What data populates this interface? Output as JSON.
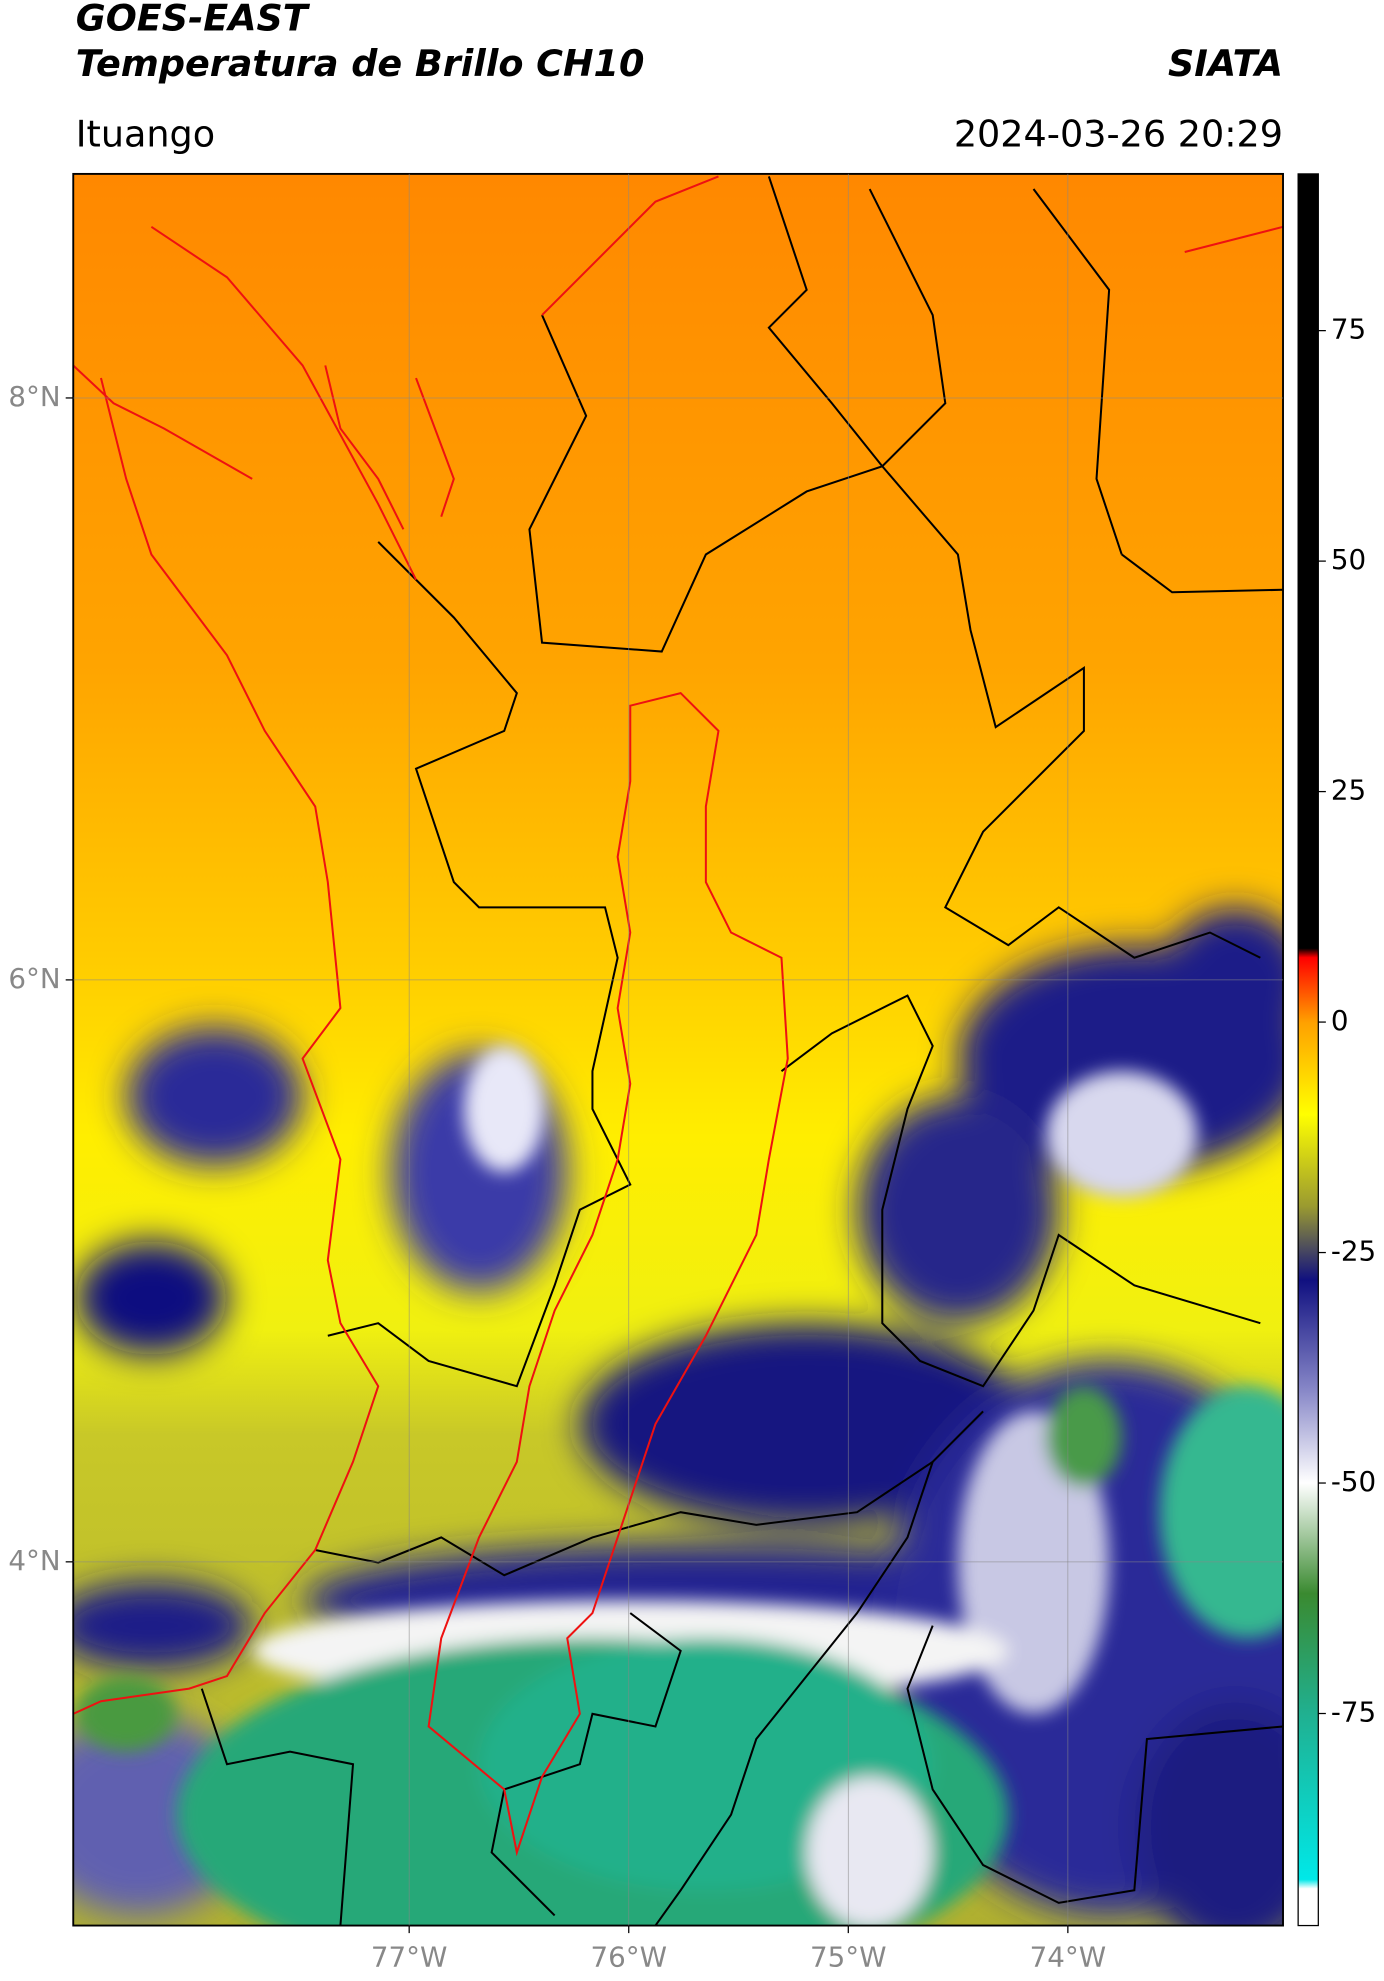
{
  "chart_data": {
    "type": "map",
    "title": "GOES-EAST",
    "subtitle": "Temperatura de Brillo CH10",
    "source": "SIATA",
    "location": "Ituango",
    "timestamp": "2024-03-26 20:29",
    "xlim": [
      -78.53,
      -73.02
    ],
    "ylim": [
      2.75,
      8.77
    ],
    "xticks": [
      {
        "value": -77,
        "label": "77°W"
      },
      {
        "value": -76,
        "label": "76°W"
      },
      {
        "value": -75,
        "label": "75°W"
      },
      {
        "value": -74,
        "label": "74°W"
      }
    ],
    "yticks": [
      {
        "value": 4,
        "label": "4°N"
      },
      {
        "value": 6,
        "label": "6°N"
      },
      {
        "value": 8,
        "label": "8°N"
      }
    ],
    "grid": true,
    "colorbar": {
      "lim": [
        -98,
        92
      ],
      "ticks": [
        -75,
        -50,
        -25,
        0,
        25,
        50,
        75
      ],
      "stops": [
        {
          "value": -98,
          "color": "#ffffff"
        },
        {
          "value": -94,
          "color": "#ffffff"
        },
        {
          "value": -93,
          "color": "#00e8e8"
        },
        {
          "value": -75,
          "color": "#20b090"
        },
        {
          "value": -62,
          "color": "#3a8a30"
        },
        {
          "value": -50,
          "color": "#ffffff"
        },
        {
          "value": -40,
          "color": "#8888c8"
        },
        {
          "value": -28,
          "color": "#101080"
        },
        {
          "value": -20,
          "color": "#9a9a30"
        },
        {
          "value": -10,
          "color": "#ffff00"
        },
        {
          "value": 0,
          "color": "#ffa000"
        },
        {
          "value": 7,
          "color": "#ff0000"
        },
        {
          "value": 8,
          "color": "#000000"
        },
        {
          "value": 92,
          "color": "#000000"
        }
      ]
    }
  }
}
